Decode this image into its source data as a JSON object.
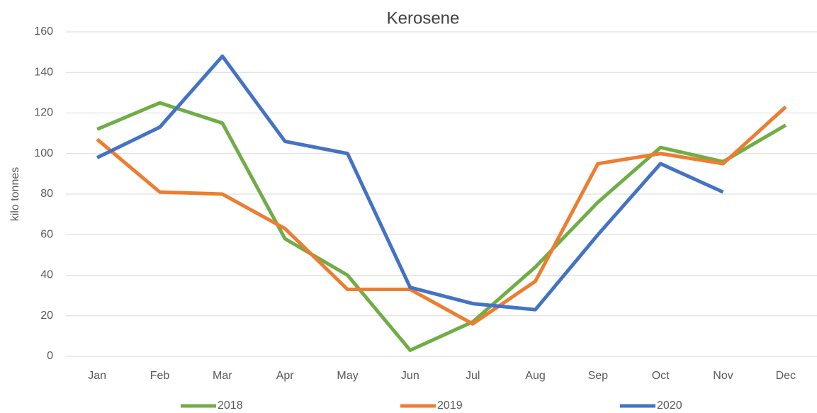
{
  "chart_data": {
    "type": "line",
    "title": "Kerosene",
    "y_label": "kilo tonnes",
    "categories": [
      "Jan",
      "Feb",
      "Mar",
      "Apr",
      "May",
      "Jun",
      "Jul",
      "Aug",
      "Sep",
      "Oct",
      "Nov",
      "Dec"
    ],
    "series": [
      {
        "name": "2018",
        "color": "#70ad47",
        "values": [
          112,
          125,
          115,
          58,
          40,
          3,
          17,
          44,
          76,
          103,
          96,
          114
        ]
      },
      {
        "name": "2019",
        "color": "#ed7d31",
        "values": [
          107,
          81,
          80,
          63,
          33,
          33,
          16,
          37,
          95,
          100,
          95,
          123
        ]
      },
      {
        "name": "2020",
        "color": "#4472c4",
        "values": [
          98,
          113,
          148,
          106,
          100,
          34,
          26,
          23,
          60,
          95,
          81,
          null
        ]
      }
    ],
    "ylim": [
      0,
      160
    ],
    "yticks": [
      0,
      20,
      40,
      60,
      80,
      100,
      120,
      140,
      160
    ],
    "grid": true,
    "legend": "bottom"
  }
}
